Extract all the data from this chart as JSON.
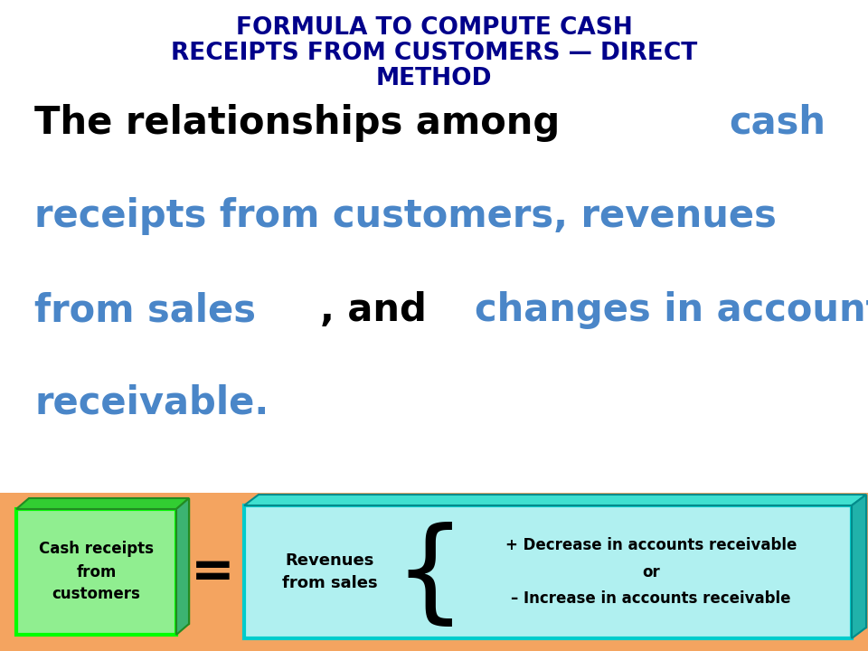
{
  "title_line1": "FORMULA TO COMPUTE CASH",
  "title_line2": "RECEIPTS FROM CUSTOMERS — DIRECT",
  "title_line3": "METHOD",
  "title_color": "#00008B",
  "title_fontsize": 19,
  "black_color": "#000000",
  "blue_color": "#4A86C8",
  "background_color": "#FFFFFF",
  "bottom_bg_color": "#F4A460",
  "left_box_fill": "#90EE90",
  "left_box_border_bright": "#00FF00",
  "left_box_border_dark": "#228B22",
  "right_box_fill": "#B0F0F0",
  "right_box_border_bright": "#00CCCC",
  "right_box_border_dark": "#008B8B",
  "body_fontsize": 30
}
